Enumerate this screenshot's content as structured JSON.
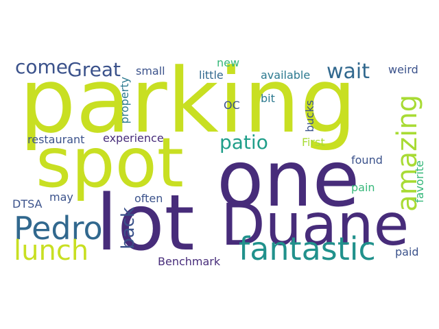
{
  "words": [
    {
      "text": "parking",
      "color": "#c8df22"
    },
    {
      "text": "spot",
      "color": "#c8df22"
    },
    {
      "text": "one",
      "color": "#472c7a"
    },
    {
      "text": "lot",
      "color": "#472c7a"
    },
    {
      "text": "Duane",
      "color": "#472c7a"
    },
    {
      "text": "Pedro",
      "color": "#31688e"
    },
    {
      "text": "fantastic",
      "color": "#21918c"
    },
    {
      "text": "lunch",
      "color": "#c8df22"
    },
    {
      "text": "amazing",
      "color": "#a8db34"
    },
    {
      "text": "patio",
      "color": "#1f9e89"
    },
    {
      "text": "wait",
      "color": "#31688e"
    },
    {
      "text": "Great",
      "color": "#3b528b"
    },
    {
      "text": "come",
      "color": "#3b528b"
    },
    {
      "text": "back",
      "color": "#3b528b"
    },
    {
      "text": "small",
      "color": "#3b528b"
    },
    {
      "text": "new",
      "color": "#35b779"
    },
    {
      "text": "little",
      "color": "#31688e"
    },
    {
      "text": "available",
      "color": "#2a788e"
    },
    {
      "text": "weird",
      "color": "#3b528b"
    },
    {
      "text": "property",
      "color": "#2a788e"
    },
    {
      "text": "OC",
      "color": "#3b528b"
    },
    {
      "text": "bit",
      "color": "#2a788e"
    },
    {
      "text": "bucks",
      "color": "#3b528b"
    },
    {
      "text": "restaurant",
      "color": "#3b528b"
    },
    {
      "text": "experience",
      "color": "#472c7a"
    },
    {
      "text": "First",
      "color": "#a8db34"
    },
    {
      "text": "found",
      "color": "#3b528b"
    },
    {
      "text": "favorite",
      "color": "#35b779"
    },
    {
      "text": "pain",
      "color": "#35b779"
    },
    {
      "text": "DTSA",
      "color": "#3b528b"
    },
    {
      "text": "may",
      "color": "#3b528b"
    },
    {
      "text": "often",
      "color": "#3b528b"
    },
    {
      "text": "paid",
      "color": "#3b528b"
    },
    {
      "text": "Benchmark",
      "color": "#472c7a"
    }
  ]
}
